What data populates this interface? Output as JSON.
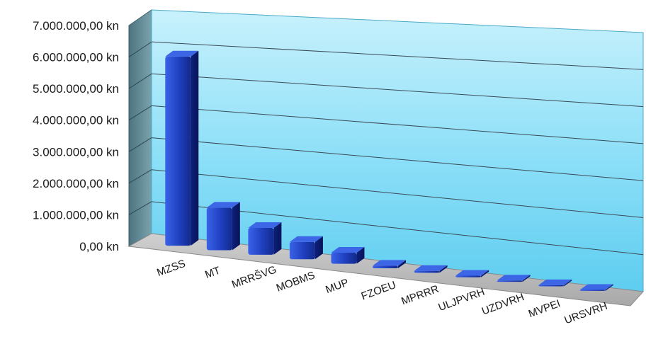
{
  "chart_data": {
    "type": "bar",
    "categories": [
      "MZSS",
      "MT",
      "MRRŠVG",
      "MOBMS",
      "MUP",
      "FZOEU",
      "MPRRR",
      "ULJPVRH",
      "UZDVRH",
      "MVPEI",
      "URSVRH"
    ],
    "values": [
      6000000,
      1350000,
      850000,
      550000,
      350000,
      80000,
      60000,
      50000,
      40000,
      35000,
      30000
    ],
    "yticks": [
      "0,00 kn",
      "1.000.000,00 kn",
      "2.000.000,00 kn",
      "3.000.000,00 kn",
      "4.000.000,00 kn",
      "5.000.000,00 kn",
      "6.000.000,00 kn",
      "7.000.000,00 kn"
    ],
    "ylim": [
      0,
      7000000
    ],
    "grid": true,
    "style": "3d-column",
    "colors": {
      "bar": "#1f3fbf",
      "bar_dark": "#0d1f7a",
      "bar_light": "#4a78f0",
      "back_wall": "#8fe0f8",
      "side_wall": "#5e8a96",
      "floor": "#b9b9b9"
    }
  }
}
